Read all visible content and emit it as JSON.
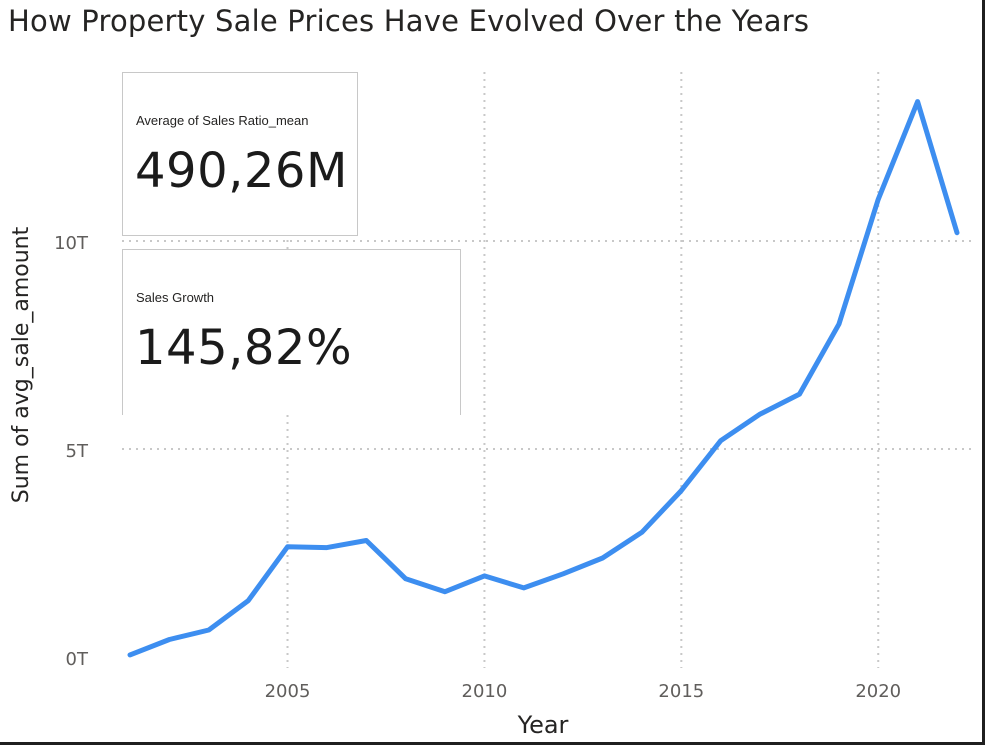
{
  "title": "How Property Sale Prices Have Evolved Over the Years",
  "cards": [
    {
      "label": "Average of Sales Ratio_mean",
      "value": "490,26M"
    },
    {
      "label": "Sales Growth",
      "value": "145,82%"
    }
  ],
  "chart_data": {
    "type": "line",
    "xlabel": "Year",
    "ylabel": "Sum of avg_sale_amount",
    "x_ticks": [
      2005,
      2010,
      2015,
      2020
    ],
    "x_tick_labels": [
      "2005",
      "2010",
      "2015",
      "2020"
    ],
    "y_ticks": [
      0,
      5,
      10
    ],
    "y_tick_labels": [
      "0T",
      "5T",
      "10T"
    ],
    "y_unit": "T",
    "xlim": [
      2001,
      2022
    ],
    "ylim": [
      0,
      14
    ],
    "grid": true,
    "series": [
      {
        "color": "#3d8ef0",
        "x": [
          2001,
          2002,
          2003,
          2004,
          2005,
          2006,
          2007,
          2008,
          2009,
          2010,
          2011,
          2012,
          2013,
          2014,
          2015,
          2016,
          2017,
          2018,
          2019,
          2020,
          2021,
          2022
        ],
        "y": [
          0.05,
          0.42,
          0.65,
          1.35,
          2.65,
          2.63,
          2.8,
          1.88,
          1.57,
          1.95,
          1.66,
          2.0,
          2.38,
          3.0,
          4.0,
          5.2,
          5.84,
          6.32,
          8.0,
          11.0,
          13.35,
          10.2
        ]
      }
    ]
  }
}
